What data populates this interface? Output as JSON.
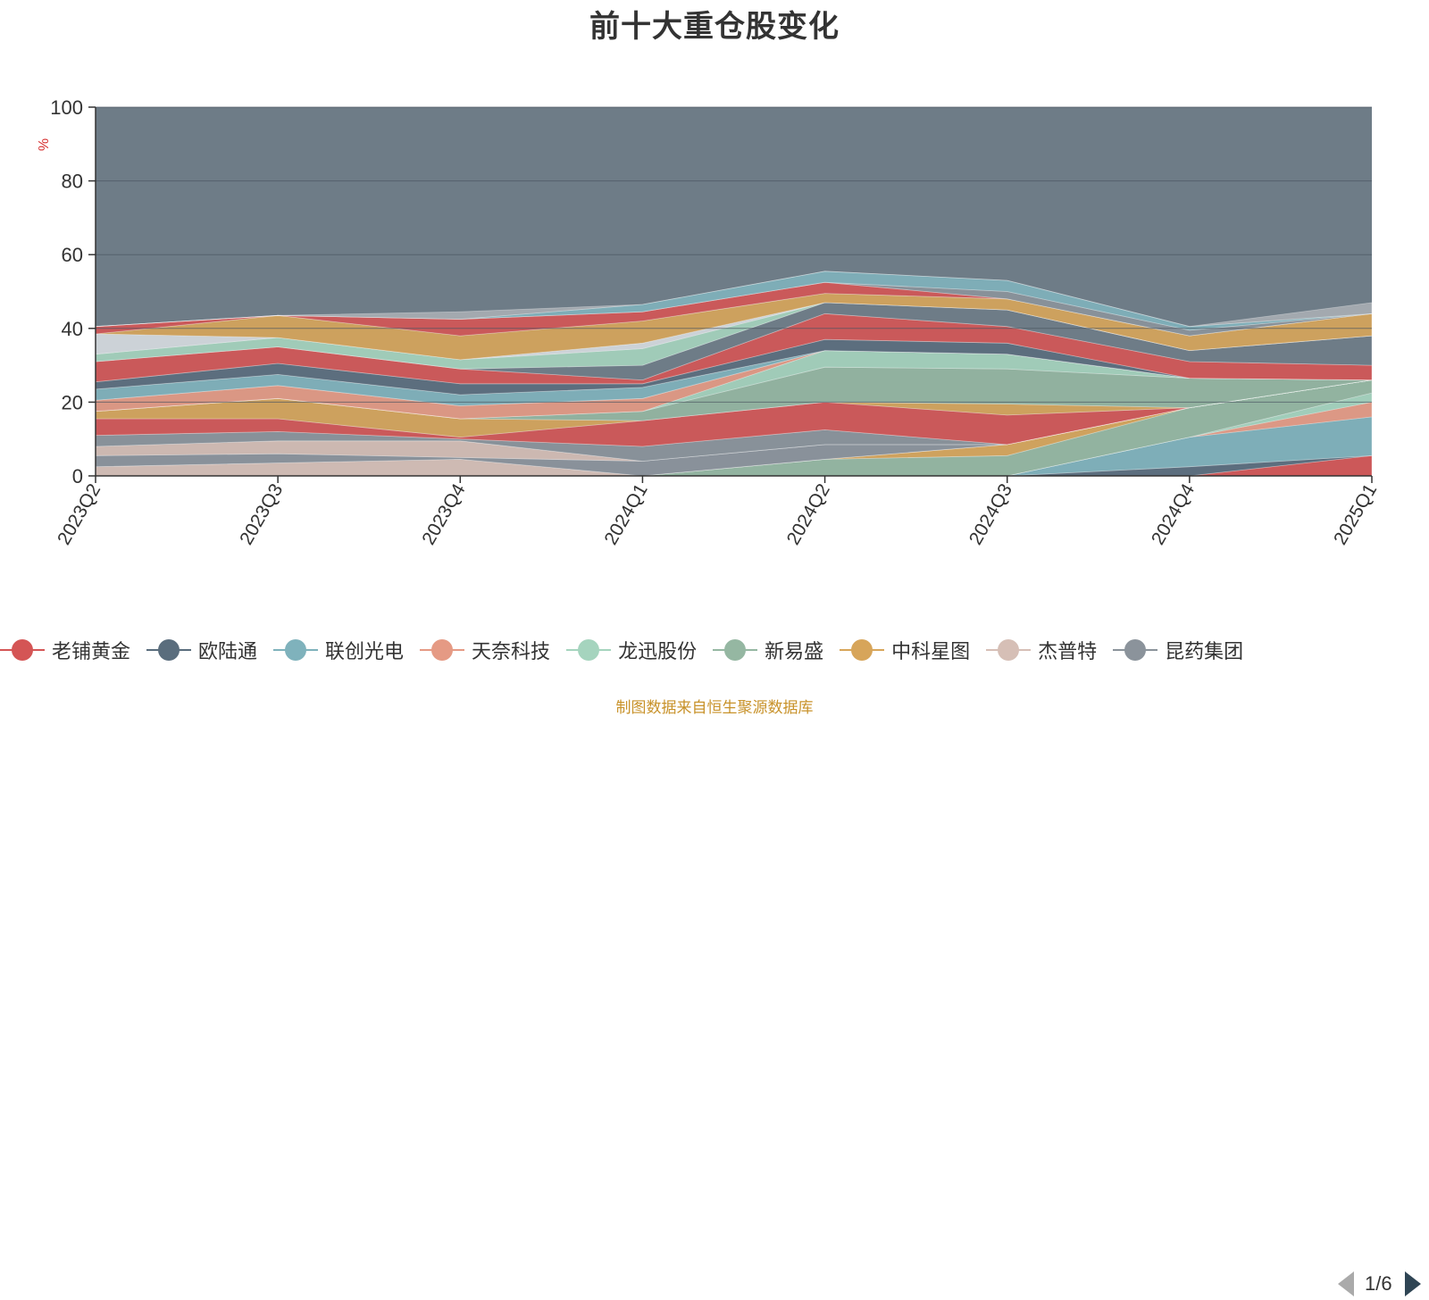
{
  "chart_data": {
    "type": "area",
    "title": "前十大重仓股变化",
    "ylabel": "%",
    "ylim": [
      0,
      100
    ],
    "yticks": [
      0,
      20,
      40,
      60,
      80,
      100
    ],
    "categories": [
      "2023Q2",
      "2023Q3",
      "2023Q4",
      "2024Q1",
      "2024Q2",
      "2024Q3",
      "2024Q4",
      "2025Q1"
    ],
    "grid": true,
    "legend_position": "bottom",
    "series": [
      {
        "name": "老铺黄金",
        "color": "#d45555",
        "values": [
          0,
          0,
          0,
          0,
          0,
          0,
          0,
          5.5
        ]
      },
      {
        "name": "欧陆通",
        "color": "#5a6d7d",
        "values": [
          0,
          0,
          0,
          0,
          0,
          0,
          2.5,
          0
        ]
      },
      {
        "name": "联创光电",
        "color": "#7fb2bc",
        "values": [
          0,
          0,
          0,
          0,
          0,
          0,
          8,
          10.5
        ]
      },
      {
        "name": "天奈科技",
        "color": "#e59a84",
        "values": [
          0,
          0,
          0,
          0,
          0,
          0,
          0,
          4
        ]
      },
      {
        "name": "龙迅股份",
        "color": "#a5d4be",
        "values": [
          0,
          0,
          0,
          0,
          0,
          0,
          0,
          2.5
        ]
      },
      {
        "name": "新易盛",
        "color": "#95b7a2",
        "values": [
          0,
          0,
          0,
          0,
          4.5,
          5.5,
          8,
          3.5
        ]
      },
      {
        "name": "中科星图",
        "color": "#d7a55a",
        "values": [
          0,
          0,
          0,
          0,
          0,
          3,
          0,
          0
        ]
      },
      {
        "name": "杰普特",
        "color": "#d6bfb6",
        "values": [
          2.5,
          3.5,
          4.5,
          0,
          0,
          0,
          0,
          0
        ]
      },
      {
        "name": "昆药集团",
        "color": "#8b939b",
        "values": [
          3,
          2.5,
          0.5,
          4,
          4,
          0,
          0,
          0
        ]
      }
    ],
    "other_bands_values": [
      [
        2.5,
        3.5,
        4.5,
        0,
        0,
        0,
        0,
        0
      ],
      [
        3,
        2.5,
        0.5,
        4,
        4,
        0,
        0,
        0
      ],
      [
        4.5,
        3.5,
        0.5,
        7,
        7.5,
        8,
        0,
        0
      ],
      [
        2,
        5.5,
        5,
        0,
        0,
        3,
        0,
        0
      ],
      [
        0,
        0,
        0,
        2.5,
        9.5,
        9.5,
        8,
        0
      ],
      [
        0,
        0,
        0,
        0,
        4.5,
        4,
        0,
        0
      ],
      [
        3,
        3.5,
        3.5,
        3.5,
        0,
        0,
        0,
        0
      ],
      [
        3,
        3,
        3,
        3,
        0,
        0,
        0,
        0
      ],
      [
        2,
        3,
        3,
        1,
        3,
        3,
        0,
        0
      ],
      [
        5.5,
        4.5,
        4,
        1,
        7,
        4.5,
        4.5,
        4
      ],
      [
        0,
        0,
        0,
        4,
        3,
        4.5,
        3,
        8
      ],
      [
        2,
        2.5,
        2.5,
        4.5,
        0,
        0,
        0,
        0
      ],
      [
        5.5,
        0,
        0,
        1.5,
        0,
        0,
        0,
        0
      ],
      [
        0,
        6,
        6.5,
        6,
        2.5,
        3,
        4,
        6
      ],
      [
        2,
        0,
        4.5,
        2.5,
        3,
        0,
        0,
        0
      ],
      [
        0,
        0,
        0,
        0,
        0,
        2,
        1.5,
        0
      ],
      [
        0,
        0,
        0,
        2,
        3,
        3,
        1,
        0
      ],
      [
        0,
        0,
        2,
        0,
        0,
        0,
        0,
        3
      ]
    ],
    "remainder_color": "#6e7c87",
    "band_palette": [
      "#d6bfb6",
      "#8b939b",
      "#d45555",
      "#d7a55a",
      "#95b7a2",
      "#a5d4be",
      "#e59a84",
      "#7fb2bc",
      "#5a6d7d",
      "#d45555",
      "#6e7c87",
      "#a5d4be",
      "#d6dbe0",
      "#d7a55a",
      "#d45555",
      "#8b939b",
      "#7fb2bc",
      "#a8aeb4"
    ]
  },
  "legend": {
    "page_text": "1/6"
  },
  "footer": {
    "source": "制图数据来自恒生聚源数据库"
  }
}
